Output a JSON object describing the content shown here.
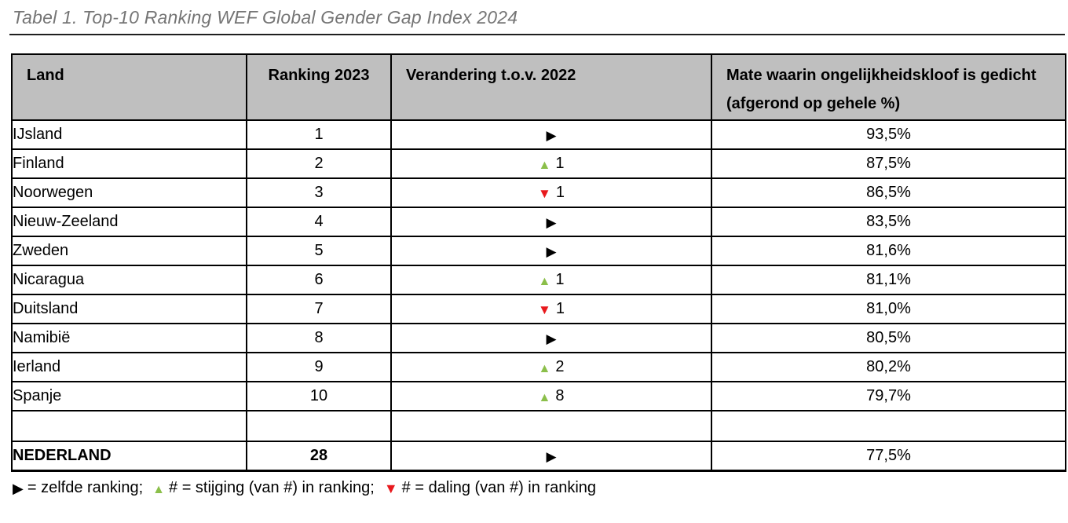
{
  "page": {
    "title": "Tabel 1. Top-10 Ranking WEF Global Gender Gap Index 2024"
  },
  "colors": {
    "header_bg": "#bfbfbf",
    "up_arrow": "#8bbf4a",
    "down_arrow": "#e8191d",
    "same_arrow": "#000000",
    "title_text": "#757575",
    "border": "#000000"
  },
  "glyphs": {
    "same": "▶",
    "up": "▲",
    "down": "▼"
  },
  "table": {
    "columns": [
      "Land",
      "Ranking 2023",
      "Verandering t.o.v. 2022",
      "Mate waarin ongelijkheidskloof is gedicht (afgerond op gehele %)"
    ],
    "rows": [
      {
        "land": "IJsland",
        "ranking": "1",
        "change": {
          "dir": "same",
          "amount": ""
        },
        "pct": "93,5%",
        "bold": false,
        "empty": false
      },
      {
        "land": "Finland",
        "ranking": "2",
        "change": {
          "dir": "up",
          "amount": "1"
        },
        "pct": "87,5%",
        "bold": false,
        "empty": false
      },
      {
        "land": "Noorwegen",
        "ranking": "3",
        "change": {
          "dir": "down",
          "amount": "1"
        },
        "pct": "86,5%",
        "bold": false,
        "empty": false
      },
      {
        "land": "Nieuw-Zeeland",
        "ranking": "4",
        "change": {
          "dir": "same",
          "amount": ""
        },
        "pct": "83,5%",
        "bold": false,
        "empty": false
      },
      {
        "land": "Zweden",
        "ranking": "5",
        "change": {
          "dir": "same",
          "amount": ""
        },
        "pct": "81,6%",
        "bold": false,
        "empty": false
      },
      {
        "land": "Nicaragua",
        "ranking": "6",
        "change": {
          "dir": "up",
          "amount": "1"
        },
        "pct": "81,1%",
        "bold": false,
        "empty": false
      },
      {
        "land": "Duitsland",
        "ranking": "7",
        "change": {
          "dir": "down",
          "amount": "1"
        },
        "pct": "81,0%",
        "bold": false,
        "empty": false
      },
      {
        "land": "Namibië",
        "ranking": "8",
        "change": {
          "dir": "same",
          "amount": ""
        },
        "pct": "80,5%",
        "bold": false,
        "empty": false
      },
      {
        "land": "Ierland",
        "ranking": "9",
        "change": {
          "dir": "up",
          "amount": "2"
        },
        "pct": "80,2%",
        "bold": false,
        "empty": false
      },
      {
        "land": "Spanje",
        "ranking": "10",
        "change": {
          "dir": "up",
          "amount": "8"
        },
        "pct": "79,7%",
        "bold": false,
        "empty": false
      },
      {
        "land": "",
        "ranking": "",
        "change": null,
        "pct": "",
        "bold": false,
        "empty": true
      },
      {
        "land": "NEDERLAND",
        "ranking": "28",
        "change": {
          "dir": "same",
          "amount": ""
        },
        "pct": "77,5%",
        "bold": true,
        "empty": false
      }
    ]
  },
  "legend": {
    "items": [
      {
        "glyph": "same",
        "text": "= zelfde ranking;"
      },
      {
        "glyph": "up",
        "text": "# = stijging (van #) in ranking;"
      },
      {
        "glyph": "down",
        "text": "# = daling (van #) in ranking"
      }
    ]
  }
}
